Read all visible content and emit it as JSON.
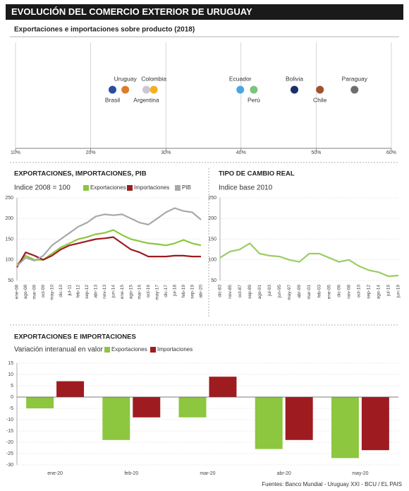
{
  "title": "EVOLUCIÓN DEL COMERCIO EXTERIOR DE URUGUAY",
  "source": "Fuentes: Banco Mundial - Uruguay XXI - BCU / EL PAIS",
  "chart_data": [
    {
      "type": "dot",
      "title": "Exportaciones e importaciones sobre producto  (2018)",
      "categories": [
        "Brasil",
        "Uruguay",
        "Argentina",
        "Colombia",
        "Ecuador",
        "Perú",
        "Bolivia",
        "Chile",
        "Paraguay"
      ],
      "values": [
        22.9,
        24.6,
        27.4,
        28.4,
        39.9,
        41.7,
        47.1,
        50.5,
        55.1
      ],
      "colors": [
        "#2b4d9b",
        "#e07b2a",
        "#c9c8d3",
        "#f2b21f",
        "#4aa6e0",
        "#7cc47a",
        "#1a2e6b",
        "#a0522d",
        "#6d6e70"
      ],
      "xlim": [
        10,
        60
      ],
      "xticks": [
        {
          "value": 10,
          "label": "10%"
        },
        {
          "value": 20,
          "label": "20%"
        },
        {
          "value": 30,
          "label": "30%"
        },
        {
          "value": 40,
          "label": "40%"
        },
        {
          "value": 50,
          "label": "50%"
        },
        {
          "value": 60,
          "label": "60%"
        }
      ],
      "grid": true
    },
    {
      "type": "line",
      "title": "EXPORTACIONES, IMPORTACIONES, PIB",
      "subtitle": "Indice 2008 = 100",
      "categories": [
        "ene-08",
        "ago-08",
        "mar-09",
        "oct-09",
        "may-10",
        "dic-10",
        "jul-11",
        "feb-12",
        "sep-12",
        "abr-13",
        "nov-13",
        "jun-14",
        "ene-15",
        "ago-15",
        "mar-16",
        "oct-16",
        "may-17",
        "dic-17",
        "jul-18",
        "feb-19",
        "sep-19",
        "abr-20"
      ],
      "series": [
        {
          "name": "Exportaciones",
          "color": "#8dc63f",
          "values": [
            88,
            110,
            100,
            100,
            115,
            130,
            140,
            150,
            155,
            162,
            165,
            172,
            160,
            150,
            145,
            140,
            138,
            135,
            140,
            148,
            140,
            135
          ]
        },
        {
          "name": "Importaciones",
          "color": "#9e1b20",
          "values": [
            82,
            118,
            110,
            100,
            110,
            125,
            135,
            140,
            145,
            150,
            152,
            155,
            140,
            125,
            118,
            108,
            108,
            108,
            110,
            110,
            108,
            108
          ]
        },
        {
          "name": "PIB",
          "color": "#a7a9ac",
          "values": [
            85,
            105,
            98,
            110,
            135,
            150,
            165,
            180,
            190,
            205,
            210,
            208,
            210,
            200,
            190,
            185,
            200,
            215,
            225,
            218,
            215,
            197
          ]
        }
      ],
      "ylim": [
        50,
        250
      ],
      "yticks": [
        50,
        100,
        150,
        200,
        250
      ],
      "grid": true,
      "legend": "top"
    },
    {
      "type": "line",
      "title": "TIPO DE CAMBIO REAL",
      "subtitle": "Indice base 2010",
      "categories": [
        "dic-83",
        "nov-85",
        "oct-87",
        "sep-89",
        "ago-91",
        "jul-93",
        "jun-95",
        "may-97",
        "abr-99",
        "mar-01",
        "feb-03",
        "ene-05",
        "dic-06",
        "nov-08",
        "oct-10",
        "sep-12",
        "ago-14",
        "jul-16",
        "jun-19"
      ],
      "values": [
        105,
        120,
        125,
        140,
        115,
        110,
        108,
        100,
        95,
        115,
        115,
        105,
        95,
        100,
        85,
        75,
        70,
        60,
        62
      ],
      "color": "#9ccc65",
      "ylim": [
        50,
        250
      ],
      "yticks": [
        50,
        100,
        150,
        200,
        250
      ],
      "grid": true
    },
    {
      "type": "bar",
      "title": "EXPORTACIONES E IMPORTACIONES",
      "subtitle": "Variación interanual en valor",
      "categories": [
        "ene-20",
        "feb-20",
        "mar-20",
        "abr-20",
        "may-20"
      ],
      "series": [
        {
          "name": "Exportaciones",
          "color": "#8dc63f",
          "values": [
            -5,
            -19,
            -9,
            -23,
            -27
          ]
        },
        {
          "name": "Importaciones",
          "color": "#9e1b20",
          "values": [
            7,
            -9,
            9,
            -19,
            -23.5
          ]
        }
      ],
      "ylim": [
        -30,
        15
      ],
      "yticks": [
        -30,
        -25,
        -20,
        -15,
        -10,
        -5,
        0,
        5,
        10,
        15
      ],
      "grid": true,
      "legend": "top"
    }
  ]
}
